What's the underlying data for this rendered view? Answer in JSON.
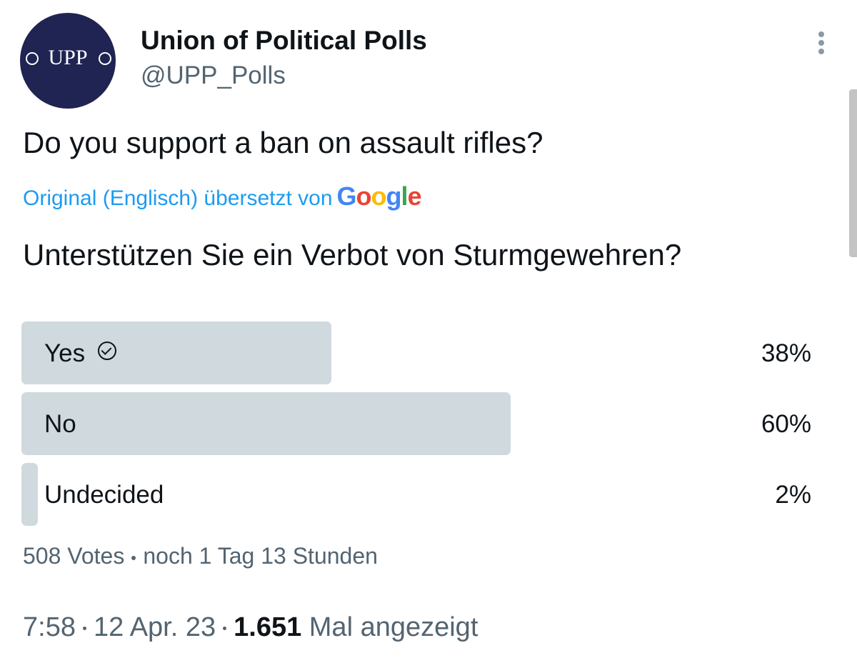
{
  "header": {
    "avatar_text": "UPP",
    "name": "Union of Political Polls",
    "handle": "@UPP_Polls"
  },
  "tweet": {
    "text": "Do you support a ban on assault rifles?",
    "translation_note": "Original (Englisch) übersetzt von",
    "translation_provider": "Google",
    "translated_text": "Unterstützen Sie ein Verbot von Sturmgewehren?"
  },
  "poll": {
    "options": [
      {
        "label": "Yes",
        "value": 38,
        "value_label": "38%",
        "selected": true
      },
      {
        "label": "No",
        "value": 60,
        "value_label": "60%",
        "selected": false
      },
      {
        "label": "Undecided",
        "value": 2,
        "value_label": "2%",
        "selected": false
      }
    ],
    "votes": "508 Votes",
    "time_left": "noch 1 Tag 13 Stunden"
  },
  "footer": {
    "time": "7:58",
    "date": "12 Apr. 23",
    "views": "1.651",
    "views_label": "Mal angezeigt"
  }
}
